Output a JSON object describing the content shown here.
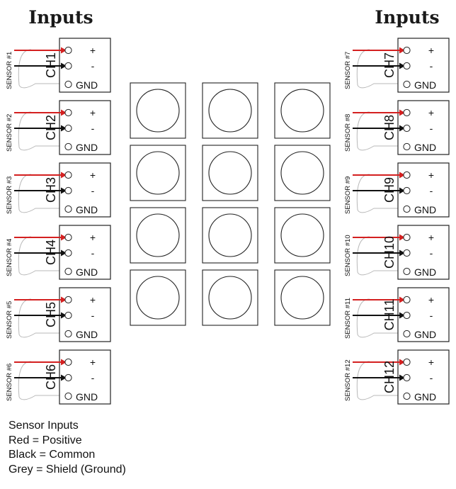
{
  "headers": {
    "left": "Inputs",
    "right": "Inputs"
  },
  "terminal_labels": {
    "positive": "+",
    "negative": "-",
    "ground": "GND"
  },
  "colors": {
    "positive_wire": "#d42020",
    "common_wire": "#111111",
    "shield_wire": "#b8b8b8",
    "outline": "#222222"
  },
  "channels": [
    {
      "sensor": "SENSOR #1",
      "channel": "CH1"
    },
    {
      "sensor": "SENSOR #2",
      "channel": "CH2"
    },
    {
      "sensor": "SENSOR #3",
      "channel": "CH3"
    },
    {
      "sensor": "SENSOR #4",
      "channel": "CH4"
    },
    {
      "sensor": "SENSOR #5",
      "channel": "CH5"
    },
    {
      "sensor": "SENSOR #6",
      "channel": "CH6"
    },
    {
      "sensor": "SENSOR #7",
      "channel": "CH7"
    },
    {
      "sensor": "SENSOR #8",
      "channel": "CH8"
    },
    {
      "sensor": "SENSOR #9",
      "channel": "CH9"
    },
    {
      "sensor": "SENSOR #10",
      "channel": "CH10"
    },
    {
      "sensor": "SENSOR #11",
      "channel": "CH11"
    },
    {
      "sensor": "SENSOR #12",
      "channel": "CH12"
    }
  ],
  "button_grid": {
    "rows": 4,
    "cols": 3
  },
  "legend": {
    "title": "Sensor Inputs",
    "lines": [
      "Red = Positive",
      "Black = Common",
      "Grey = Shield (Ground)"
    ]
  }
}
